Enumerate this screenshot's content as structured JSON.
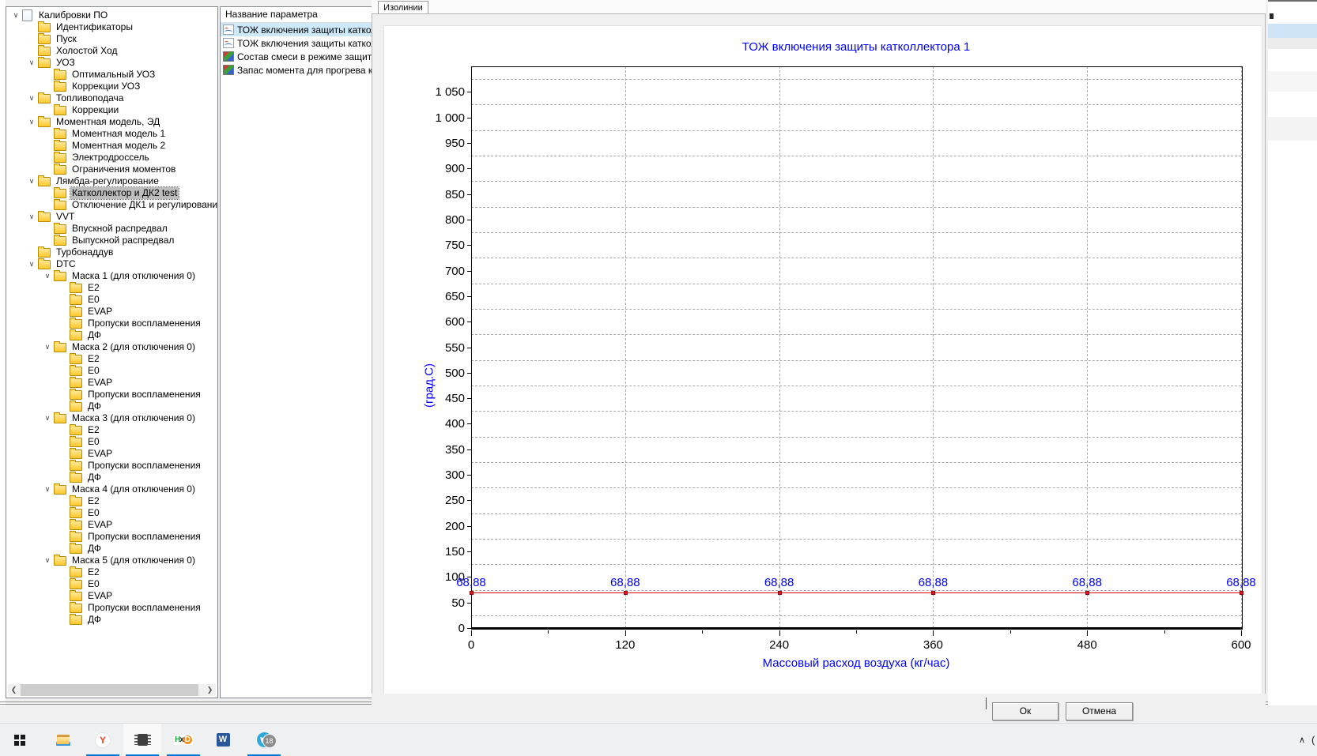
{
  "colors": {
    "accent_taskbar_indicator": "#0078d7",
    "selection_blue": "#cde8f7",
    "selection_gray": "#bdbdbd",
    "chart_line": "#e00000",
    "chart_marker": "#e81717",
    "chart_text_blue": "#0000ff",
    "folder_yellow": "#ffc928"
  },
  "tree": {
    "items": [
      {
        "label": "Калибровки ПО",
        "depth": 0,
        "icon": "document",
        "expanded": true
      },
      {
        "label": "Идентификаторы",
        "depth": 1,
        "icon": "folder"
      },
      {
        "label": "Пуск",
        "depth": 1,
        "icon": "folder"
      },
      {
        "label": "Холостой Ход",
        "depth": 1,
        "icon": "folder"
      },
      {
        "label": "УОЗ",
        "depth": 1,
        "icon": "folder",
        "expanded": true
      },
      {
        "label": "Оптимальный УОЗ",
        "depth": 2,
        "icon": "folder"
      },
      {
        "label": "Коррекции УОЗ",
        "depth": 2,
        "icon": "folder"
      },
      {
        "label": "Топливоподача",
        "depth": 1,
        "icon": "folder",
        "expanded": true
      },
      {
        "label": "Коррекции",
        "depth": 2,
        "icon": "folder"
      },
      {
        "label": "Моментная модель, ЭД",
        "depth": 1,
        "icon": "folder",
        "expanded": true
      },
      {
        "label": "Моментная модель 1",
        "depth": 2,
        "icon": "folder"
      },
      {
        "label": "Моментная модель 2",
        "depth": 2,
        "icon": "folder"
      },
      {
        "label": "Электродроссель",
        "depth": 2,
        "icon": "folder"
      },
      {
        "label": "Ограничения моментов",
        "depth": 2,
        "icon": "folder"
      },
      {
        "label": "Лямбда-регулирование",
        "depth": 1,
        "icon": "folder",
        "expanded": true
      },
      {
        "label": "Катколлектор и ДК2 test",
        "depth": 2,
        "icon": "folder",
        "selected": true
      },
      {
        "label": "Отключение ДК1 и регулировани",
        "depth": 2,
        "icon": "folder"
      },
      {
        "label": "VVT",
        "depth": 1,
        "icon": "folder",
        "expanded": true
      },
      {
        "label": "Впускной распредвал",
        "depth": 2,
        "icon": "folder"
      },
      {
        "label": "Выпускной распредвал",
        "depth": 2,
        "icon": "folder"
      },
      {
        "label": "Турбонаддув",
        "depth": 1,
        "icon": "folder"
      },
      {
        "label": "DTC",
        "depth": 1,
        "icon": "folder",
        "expanded": true
      },
      {
        "label": "Маска 1 (для отключения 0)",
        "depth": 2,
        "icon": "folder",
        "expanded": true
      },
      {
        "label": "E2",
        "depth": 3,
        "icon": "folder"
      },
      {
        "label": "E0",
        "depth": 3,
        "icon": "folder"
      },
      {
        "label": "EVAP",
        "depth": 3,
        "icon": "folder"
      },
      {
        "label": "Пропуски воспламенения",
        "depth": 3,
        "icon": "folder"
      },
      {
        "label": "ДФ",
        "depth": 3,
        "icon": "folder"
      },
      {
        "label": "Маска 2 (для отключения 0)",
        "depth": 2,
        "icon": "folder",
        "expanded": true
      },
      {
        "label": "E2",
        "depth": 3,
        "icon": "folder"
      },
      {
        "label": "E0",
        "depth": 3,
        "icon": "folder"
      },
      {
        "label": "EVAP",
        "depth": 3,
        "icon": "folder"
      },
      {
        "label": "Пропуски воспламенения",
        "depth": 3,
        "icon": "folder"
      },
      {
        "label": "ДФ",
        "depth": 3,
        "icon": "folder"
      },
      {
        "label": "Маска 3 (для отключения 0)",
        "depth": 2,
        "icon": "folder",
        "expanded": true
      },
      {
        "label": "E2",
        "depth": 3,
        "icon": "folder"
      },
      {
        "label": "E0",
        "depth": 3,
        "icon": "folder"
      },
      {
        "label": "EVAP",
        "depth": 3,
        "icon": "folder"
      },
      {
        "label": "Пропуски воспламенения",
        "depth": 3,
        "icon": "folder"
      },
      {
        "label": "ДФ",
        "depth": 3,
        "icon": "folder"
      },
      {
        "label": "Маска 4 (для отключения 0)",
        "depth": 2,
        "icon": "folder",
        "expanded": true
      },
      {
        "label": "E2",
        "depth": 3,
        "icon": "folder"
      },
      {
        "label": "E0",
        "depth": 3,
        "icon": "folder"
      },
      {
        "label": "EVAP",
        "depth": 3,
        "icon": "folder"
      },
      {
        "label": "Пропуски воспламенения",
        "depth": 3,
        "icon": "folder"
      },
      {
        "label": "ДФ",
        "depth": 3,
        "icon": "folder"
      },
      {
        "label": "Маска 5 (для отключения 0)",
        "depth": 2,
        "icon": "folder",
        "expanded": true
      },
      {
        "label": "E2",
        "depth": 3,
        "icon": "folder"
      },
      {
        "label": "E0",
        "depth": 3,
        "icon": "folder"
      },
      {
        "label": "EVAP",
        "depth": 3,
        "icon": "folder"
      },
      {
        "label": "Пропуски воспламенения",
        "depth": 3,
        "icon": "folder"
      },
      {
        "label": "ДФ",
        "depth": 3,
        "icon": "folder"
      }
    ]
  },
  "param_list": {
    "header": "Название параметра",
    "items": [
      {
        "label": "ТОЖ включения защиты катколле",
        "icon": "curve",
        "selected": true
      },
      {
        "label": "ТОЖ включения защиты катколле",
        "icon": "curve",
        "selected": false
      },
      {
        "label": "Состав смеси в режиме защиты к",
        "icon": "surface",
        "selected": false
      },
      {
        "label": "Запас момента для прогрева ката",
        "icon": "surface",
        "selected": false
      }
    ]
  },
  "dialog": {
    "tab_label": "Изолинии",
    "ok_label": "Ок",
    "cancel_label": "Отмена"
  },
  "chart_data": {
    "type": "line",
    "title": "ТОЖ включения защиты катколлектора 1",
    "xlabel": "Массовый расход воздуха (кг/час)",
    "ylabel": "(град.С)",
    "x": [
      0,
      120,
      240,
      360,
      480,
      600
    ],
    "series": [
      {
        "name": "ТОЖ включения защиты катколлектора 1",
        "values": [
          68.88,
          68.88,
          68.88,
          68.88,
          68.88,
          68.88
        ]
      }
    ],
    "point_labels": [
      "68,88",
      "68,88",
      "68,88",
      "68,88",
      "68,88",
      "68,88"
    ],
    "xlim": [
      0,
      600
    ],
    "ylim": [
      0,
      1100
    ],
    "xticks": [
      0,
      120,
      240,
      360,
      480,
      600
    ],
    "xtick_minor_step": 60,
    "ytick_step": 50,
    "ytick_max": 1050,
    "grid": true,
    "legend": false
  },
  "taskbar": {
    "telegram_badge": "18",
    "tray_chevron": "∧",
    "items": [
      {
        "name": "start",
        "running": false
      },
      {
        "name": "file-explorer",
        "running": false
      },
      {
        "name": "yandex-browser",
        "running": true
      },
      {
        "name": "chip-app",
        "running": true,
        "active": true
      },
      {
        "name": "hxd-editor",
        "running": true
      },
      {
        "name": "word",
        "running": false
      },
      {
        "name": "telegram",
        "running": true
      }
    ]
  }
}
